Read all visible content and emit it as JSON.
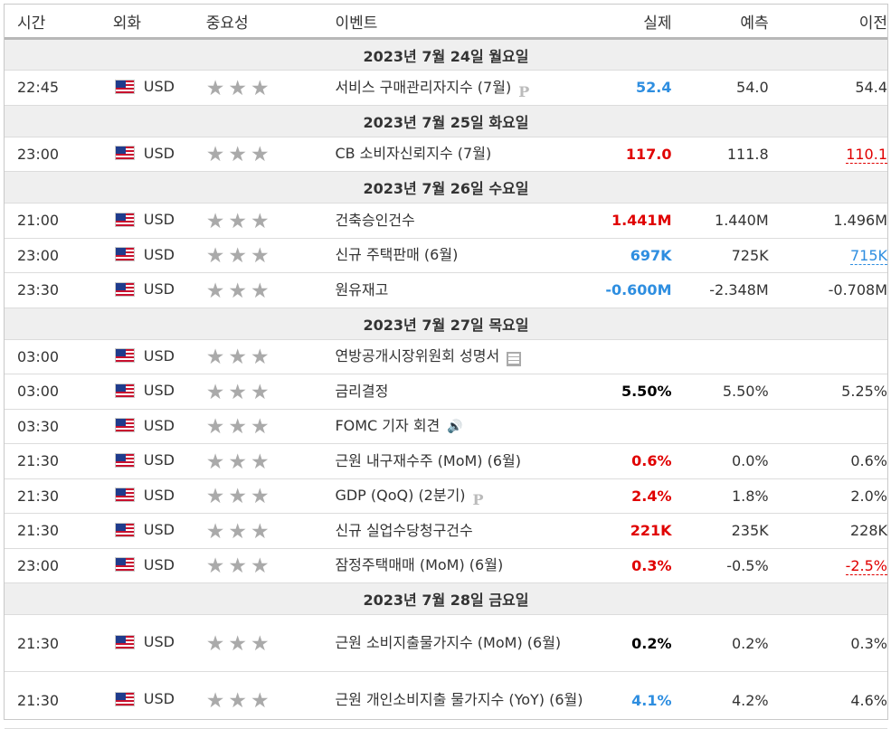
{
  "headers": {
    "time": "시간",
    "currency": "외화",
    "importance": "중요성",
    "event": "이벤트",
    "actual": "실제",
    "forecast": "예측",
    "previous": "이전"
  },
  "colors": {
    "positive_blue": "#2e8ee0",
    "negative_red": "#e00000",
    "stars_gray": "#aaaaaa",
    "day_bg": "#efefef"
  },
  "days": [
    {
      "label": "2023년 7월 24일 월요일",
      "events": [
        {
          "time": "22:45",
          "currency": "USD",
          "stars": "★★★",
          "event": "서비스 구매관리자지수 (7월)",
          "icon": "preliminary-icon",
          "icon_text": "P",
          "actual": "52.4",
          "actual_color": "blue",
          "forecast": "54.0",
          "previous": "54.4",
          "previous_style": ""
        }
      ]
    },
    {
      "label": "2023년 7월 25일 화요일",
      "events": [
        {
          "time": "23:00",
          "currency": "USD",
          "stars": "★★★",
          "event": "CB 소비자신뢰지수 (7월)",
          "icon": "",
          "icon_text": "",
          "actual": "117.0",
          "actual_color": "red",
          "forecast": "111.8",
          "previous": "110.1",
          "previous_style": "revised-red"
        }
      ]
    },
    {
      "label": "2023년 7월 26일 수요일",
      "events": [
        {
          "time": "21:00",
          "currency": "USD",
          "stars": "★★★",
          "event": "건축승인건수",
          "icon": "",
          "icon_text": "",
          "actual": "1.441M",
          "actual_color": "red",
          "forecast": "1.440M",
          "previous": "1.496M",
          "previous_style": ""
        },
        {
          "time": "23:00",
          "currency": "USD",
          "stars": "★★★",
          "event": "신규 주택판매 (6월)",
          "icon": "",
          "icon_text": "",
          "actual": "697K",
          "actual_color": "blue",
          "forecast": "725K",
          "previous": "715K",
          "previous_style": "revised-blue"
        },
        {
          "time": "23:30",
          "currency": "USD",
          "stars": "★★★",
          "event": "원유재고",
          "icon": "",
          "icon_text": "",
          "actual": "-0.600M",
          "actual_color": "blue",
          "forecast": "-2.348M",
          "previous": "-0.708M",
          "previous_style": ""
        }
      ]
    },
    {
      "label": "2023년 7월 27일 목요일",
      "events": [
        {
          "time": "03:00",
          "currency": "USD",
          "stars": "★★★",
          "event": "연방공개시장위원회 성명서",
          "icon": "document-icon",
          "icon_text": "",
          "actual": "",
          "actual_color": "",
          "forecast": "",
          "previous": "",
          "previous_style": ""
        },
        {
          "time": "03:00",
          "currency": "USD",
          "stars": "★★★",
          "event": "금리결정",
          "icon": "",
          "icon_text": "",
          "actual": "5.50%",
          "actual_color": "black",
          "forecast": "5.50%",
          "previous": "5.25%",
          "previous_style": ""
        },
        {
          "time": "03:30",
          "currency": "USD",
          "stars": "★★★",
          "event": "FOMC 기자 회견",
          "icon": "speaker-icon",
          "icon_text": "🔊",
          "actual": "",
          "actual_color": "",
          "forecast": "",
          "previous": "",
          "previous_style": ""
        },
        {
          "time": "21:30",
          "currency": "USD",
          "stars": "★★★",
          "event": "근원 내구재수주 (MoM) (6월)",
          "icon": "",
          "icon_text": "",
          "actual": "0.6%",
          "actual_color": "red",
          "forecast": "0.0%",
          "previous": "0.6%",
          "previous_style": ""
        },
        {
          "time": "21:30",
          "currency": "USD",
          "stars": "★★★",
          "event": "GDP (QoQ) (2분기)",
          "icon": "preliminary-icon",
          "icon_text": "P",
          "actual": "2.4%",
          "actual_color": "red",
          "forecast": "1.8%",
          "previous": "2.0%",
          "previous_style": ""
        },
        {
          "time": "21:30",
          "currency": "USD",
          "stars": "★★★",
          "event": "신규 실업수당청구건수",
          "icon": "",
          "icon_text": "",
          "actual": "221K",
          "actual_color": "red",
          "forecast": "235K",
          "previous": "228K",
          "previous_style": ""
        },
        {
          "time": "23:00",
          "currency": "USD",
          "stars": "★★★",
          "event": "잠정주택매매 (MoM) (6월)",
          "icon": "",
          "icon_text": "",
          "actual": "0.3%",
          "actual_color": "red",
          "forecast": "-0.5%",
          "previous": "-2.5%",
          "previous_style": "revised-red"
        }
      ]
    },
    {
      "label": "2023년 7월 28일 금요일",
      "events": [
        {
          "time": "21:30",
          "currency": "USD",
          "stars": "★★★",
          "event": "근원 소비지출물가지수 (MoM) (6월)",
          "icon": "",
          "icon_text": "",
          "actual": "0.2%",
          "actual_color": "black",
          "forecast": "0.2%",
          "previous": "0.3%",
          "previous_style": "",
          "tall": true
        },
        {
          "time": "21:30",
          "currency": "USD",
          "stars": "★★★",
          "event": "근원 개인소비지출 물가지수 (YoY) (6월)",
          "icon": "",
          "icon_text": "",
          "actual": "4.1%",
          "actual_color": "blue",
          "forecast": "4.2%",
          "previous": "4.6%",
          "previous_style": "",
          "tall": true
        }
      ]
    }
  ]
}
